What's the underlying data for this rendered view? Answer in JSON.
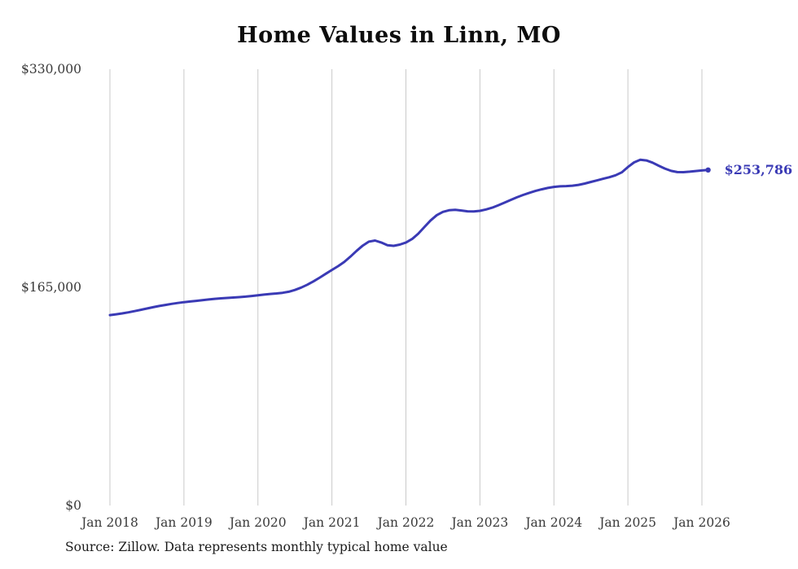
{
  "chart_data": {
    "type": "line",
    "title": "Home Values in Linn, MO",
    "source": "Source: Zillow. Data represents monthly typical home value",
    "end_label": "$253,786",
    "end_value": 253786,
    "ylim": [
      0,
      330000
    ],
    "grid": "vertical-only",
    "legend": "none",
    "colors": {
      "line": "#3a3ab5",
      "grid": "#c9c9c9",
      "tick_text": "#3a3a3a",
      "end_label": "#3a3ab5"
    },
    "y_ticks": [
      {
        "label": "$0",
        "value": 0
      },
      {
        "label": "$165,000",
        "value": 165000
      },
      {
        "label": "$330,000",
        "value": 330000
      }
    ],
    "x_ticks": [
      {
        "label": "Jan 2018",
        "month_index": 0
      },
      {
        "label": "Jan 2019",
        "month_index": 12
      },
      {
        "label": "Jan 2020",
        "month_index": 24
      },
      {
        "label": "Jan 2021",
        "month_index": 36
      },
      {
        "label": "Jan 2022",
        "month_index": 48
      },
      {
        "label": "Jan 2023",
        "month_index": 60
      },
      {
        "label": "Jan 2024",
        "month_index": 72
      },
      {
        "label": "Jan 2025",
        "month_index": 84
      },
      {
        "label": "Jan 2026",
        "month_index": 96
      }
    ],
    "x_start": "2018-01",
    "x_frequency": "monthly",
    "series": [
      {
        "name": "Monthly typical home value",
        "color": "#3a3ab5",
        "values": [
          144000,
          144600,
          145300,
          146100,
          147000,
          148000,
          149000,
          150000,
          150900,
          151700,
          152500,
          153200,
          153800,
          154300,
          154800,
          155300,
          155800,
          156300,
          156700,
          157000,
          157300,
          157600,
          158000,
          158500,
          159000,
          159500,
          160000,
          160400,
          160900,
          161700,
          163000,
          164800,
          167000,
          169500,
          172300,
          175300,
          178200,
          181000,
          184200,
          188200,
          192600,
          196600,
          199600,
          200400,
          198900,
          196900,
          196400,
          197300,
          198900,
          201600,
          205600,
          210600,
          215600,
          219600,
          222100,
          223300,
          223600,
          223100,
          222500,
          222400,
          222900,
          223900,
          225300,
          227100,
          229100,
          231100,
          233100,
          234900,
          236500,
          237900,
          239100,
          240200,
          241000,
          241400,
          241600,
          241900,
          242500,
          243500,
          244700,
          245900,
          247100,
          248300,
          249800,
          252000,
          256000,
          259500,
          261500,
          261000,
          259300,
          257000,
          254800,
          253100,
          252200,
          252100,
          252500,
          253000,
          253400,
          253786
        ]
      }
    ]
  }
}
